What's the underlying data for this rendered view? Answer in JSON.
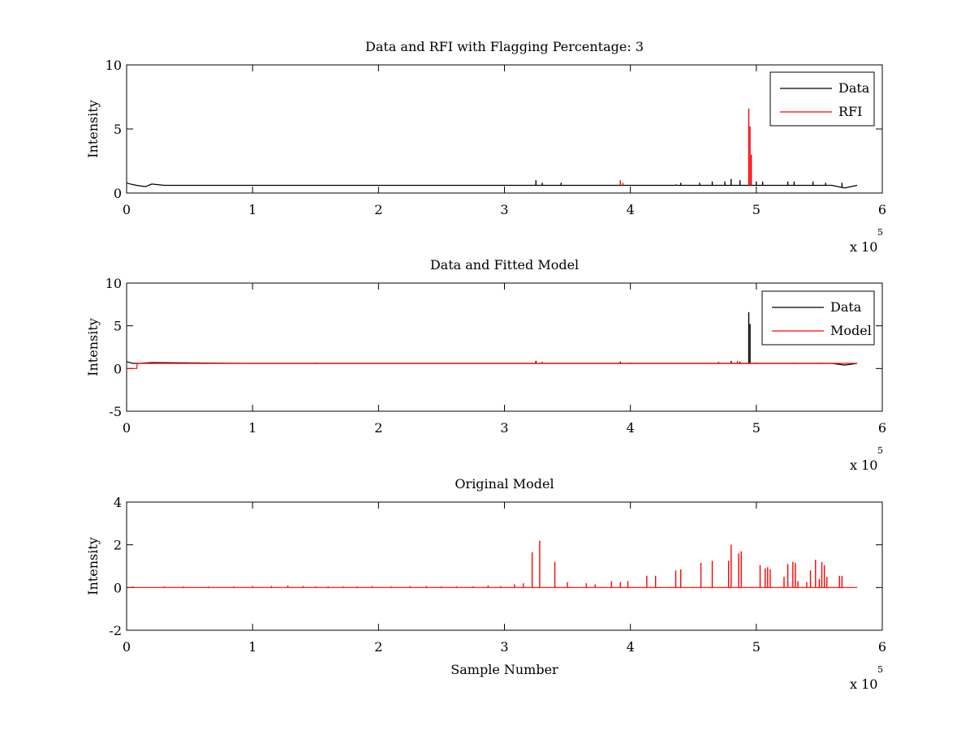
{
  "figure": {
    "background": "#ffffff",
    "colors": {
      "data": "#000000",
      "rfi": "#ff0000",
      "model": "#ff0000",
      "axes": "#000000"
    }
  },
  "chart_data": [
    {
      "type": "line",
      "title": "Data and RFI with Flagging Percentage: 3",
      "xlabel": "",
      "ylabel": "Intensity",
      "xlim": [
        0,
        600000
      ],
      "ylim": [
        0,
        10
      ],
      "xticks": [
        0,
        100000,
        200000,
        300000,
        400000,
        500000,
        600000
      ],
      "xtick_labels": [
        "0",
        "1",
        "2",
        "3",
        "4",
        "5",
        "6"
      ],
      "yticks": [
        0,
        5,
        10
      ],
      "ytick_labels": [
        "0",
        "5",
        "10"
      ],
      "x_multiplier": {
        "base": "x 10",
        "exponent": "5"
      },
      "grid": false,
      "legend": {
        "position": "top-right",
        "entries": [
          "Data",
          "RFI"
        ]
      },
      "series": [
        {
          "name": "Data",
          "color": "#000000",
          "baseline": [
            [
              0,
              0.8
            ],
            [
              3000,
              0.7
            ],
            [
              8000,
              0.6
            ],
            [
              15000,
              0.5
            ],
            [
              20000,
              0.7
            ],
            [
              30000,
              0.6
            ],
            [
              100000,
              0.6
            ],
            [
              200000,
              0.6
            ],
            [
              300000,
              0.6
            ],
            [
              400000,
              0.6
            ],
            [
              500000,
              0.6
            ],
            [
              560000,
              0.6
            ],
            [
              570000,
              0.4
            ],
            [
              575000,
              0.5
            ],
            [
              580000,
              0.6
            ]
          ],
          "spikes": [
            [
              325000,
              1.0
            ],
            [
              330000,
              0.8
            ],
            [
              345000,
              0.8
            ],
            [
              440000,
              0.8
            ],
            [
              455000,
              0.8
            ],
            [
              465000,
              0.9
            ],
            [
              475000,
              0.9
            ],
            [
              480000,
              1.1
            ],
            [
              487000,
              1.0
            ],
            [
              500000,
              0.9
            ],
            [
              505000,
              0.9
            ],
            [
              525000,
              0.9
            ],
            [
              530000,
              0.9
            ],
            [
              545000,
              0.9
            ],
            [
              555000,
              0.8
            ],
            [
              568000,
              0.8
            ]
          ]
        },
        {
          "name": "RFI",
          "color": "#ff0000",
          "spikes": [
            [
              392000,
              1.0
            ],
            [
              394000,
              0.8
            ],
            [
              436000,
              0.7
            ],
            [
              494000,
              6.6
            ],
            [
              495000,
              5.2
            ],
            [
              496000,
              3.0
            ]
          ]
        }
      ]
    },
    {
      "type": "line",
      "title": "Data and Fitted Model",
      "xlabel": "",
      "ylabel": "Intensity",
      "xlim": [
        0,
        600000
      ],
      "ylim": [
        -5,
        10
      ],
      "xticks": [
        0,
        100000,
        200000,
        300000,
        400000,
        500000,
        600000
      ],
      "xtick_labels": [
        "0",
        "1",
        "2",
        "3",
        "4",
        "5",
        "6"
      ],
      "yticks": [
        -5,
        0,
        5,
        10
      ],
      "ytick_labels": [
        "-5",
        "0",
        "5",
        "10"
      ],
      "x_multiplier": {
        "base": "x 10",
        "exponent": "5"
      },
      "grid": false,
      "legend": {
        "position": "top-right",
        "entries": [
          "Data",
          "Model"
        ]
      },
      "series": [
        {
          "name": "Data",
          "color": "#000000",
          "baseline": [
            [
              0,
              0.8
            ],
            [
              5000,
              0.6
            ],
            [
              10000,
              0.6
            ],
            [
              20000,
              0.7
            ],
            [
              100000,
              0.6
            ],
            [
              300000,
              0.6
            ],
            [
              500000,
              0.6
            ],
            [
              560000,
              0.6
            ],
            [
              570000,
              0.4
            ],
            [
              575000,
              0.5
            ],
            [
              580000,
              0.6
            ]
          ],
          "spikes": [
            [
              325000,
              0.9
            ],
            [
              392000,
              0.8
            ],
            [
              480000,
              0.9
            ],
            [
              487000,
              0.8
            ],
            [
              494000,
              6.6
            ],
            [
              495000,
              5.2
            ]
          ]
        },
        {
          "name": "Model",
          "color": "#ff0000",
          "baseline": [
            [
              0,
              0.0
            ],
            [
              8000,
              0.0
            ],
            [
              8500,
              0.6
            ],
            [
              20000,
              0.6
            ],
            [
              100000,
              0.6
            ],
            [
              300000,
              0.6
            ],
            [
              500000,
              0.6
            ],
            [
              580000,
              0.6
            ]
          ],
          "spikes": [
            [
              50000,
              0.7
            ],
            [
              150000,
              0.7
            ],
            [
              330000,
              0.8
            ],
            [
              400000,
              0.7
            ],
            [
              470000,
              0.8
            ],
            [
              485000,
              0.9
            ],
            [
              500000,
              0.7
            ],
            [
              530000,
              0.7
            ],
            [
              550000,
              0.7
            ]
          ]
        }
      ]
    },
    {
      "type": "line",
      "title": "Original Model",
      "xlabel": "Sample Number",
      "ylabel": "Intensity",
      "xlim": [
        0,
        600000
      ],
      "ylim": [
        -2,
        4
      ],
      "xticks": [
        0,
        100000,
        200000,
        300000,
        400000,
        500000,
        600000
      ],
      "xtick_labels": [
        "0",
        "1",
        "2",
        "3",
        "4",
        "5",
        "6"
      ],
      "yticks": [
        -2,
        0,
        2,
        4
      ],
      "ytick_labels": [
        "-2",
        "0",
        "2",
        "4"
      ],
      "x_multiplier": {
        "base": "x 10",
        "exponent": "5"
      },
      "grid": false,
      "legend": null,
      "series": [
        {
          "name": "",
          "color": "#ff0000",
          "baseline": [
            [
              2000,
              0.0
            ],
            [
              580000,
              0.0
            ]
          ],
          "spikes": [
            [
              5000,
              0.05
            ],
            [
              30000,
              0.05
            ],
            [
              45000,
              0.05
            ],
            [
              65000,
              0.05
            ],
            [
              85000,
              0.05
            ],
            [
              100000,
              0.07
            ],
            [
              115000,
              0.07
            ],
            [
              128000,
              0.1
            ],
            [
              140000,
              0.07
            ],
            [
              150000,
              0.05
            ],
            [
              160000,
              0.05
            ],
            [
              172000,
              0.05
            ],
            [
              183000,
              0.05
            ],
            [
              195000,
              0.07
            ],
            [
              210000,
              0.05
            ],
            [
              225000,
              0.07
            ],
            [
              238000,
              0.07
            ],
            [
              250000,
              0.05
            ],
            [
              262000,
              0.05
            ],
            [
              275000,
              0.05
            ],
            [
              287000,
              0.1
            ],
            [
              297000,
              0.07
            ],
            [
              308000,
              0.15
            ],
            [
              315000,
              0.2
            ],
            [
              322000,
              1.65
            ],
            [
              328000,
              2.2
            ],
            [
              340000,
              1.2
            ],
            [
              350000,
              0.25
            ],
            [
              365000,
              0.2
            ],
            [
              372000,
              0.15
            ],
            [
              385000,
              0.3
            ],
            [
              392000,
              0.25
            ],
            [
              398000,
              0.3
            ],
            [
              413000,
              0.55
            ],
            [
              420000,
              0.55
            ],
            [
              436000,
              0.8
            ],
            [
              440000,
              0.85
            ],
            [
              456000,
              1.15
            ],
            [
              465000,
              1.25
            ],
            [
              478000,
              1.25
            ],
            [
              480000,
              2.0
            ],
            [
              486000,
              1.6
            ],
            [
              488000,
              1.7
            ],
            [
              503000,
              1.05
            ],
            [
              507000,
              0.9
            ],
            [
              509000,
              0.95
            ],
            [
              511000,
              0.85
            ],
            [
              522000,
              0.5
            ],
            [
              525000,
              1.1
            ],
            [
              529000,
              1.2
            ],
            [
              531000,
              1.15
            ],
            [
              533000,
              0.3
            ],
            [
              540000,
              0.25
            ],
            [
              543000,
              0.8
            ],
            [
              547000,
              1.3
            ],
            [
              550000,
              0.4
            ],
            [
              552000,
              1.2
            ],
            [
              554000,
              1.05
            ],
            [
              556000,
              0.5
            ],
            [
              566000,
              0.55
            ],
            [
              568000,
              0.55
            ]
          ]
        }
      ]
    }
  ]
}
